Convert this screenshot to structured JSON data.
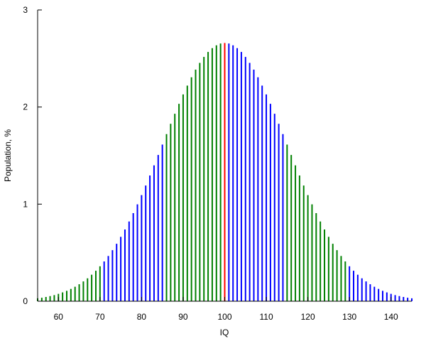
{
  "chart_data": {
    "type": "bar",
    "x_label": "IQ",
    "y_label": "Population, %",
    "xlim": [
      55,
      145
    ],
    "ylim": [
      0,
      3
    ],
    "xticks": [
      60,
      70,
      80,
      90,
      100,
      110,
      120,
      130,
      140
    ],
    "yticks": [
      0,
      1,
      2,
      3
    ],
    "series": [
      {
        "color": "#008000",
        "x": [
          55,
          56,
          57,
          58,
          59,
          60,
          61,
          62,
          63,
          64,
          65,
          66,
          67,
          68,
          69,
          70,
          86,
          87,
          88,
          89,
          90,
          91,
          92,
          93,
          94,
          95,
          96,
          97,
          98,
          99,
          115,
          116,
          117,
          118,
          119,
          120,
          121,
          122,
          123,
          124,
          125,
          126,
          127,
          128,
          129
        ],
        "values": [
          0.03,
          0.036,
          0.044,
          0.053,
          0.063,
          0.076,
          0.091,
          0.107,
          0.127,
          0.149,
          0.175,
          0.204,
          0.236,
          0.273,
          0.314,
          0.36,
          1.721,
          1.827,
          1.931,
          2.033,
          2.13,
          2.221,
          2.307,
          2.385,
          2.455,
          2.516,
          2.567,
          2.607,
          2.636,
          2.654,
          1.613,
          1.506,
          1.399,
          1.295,
          1.192,
          1.093,
          0.998,
          0.907,
          0.821,
          0.739,
          0.663,
          0.592,
          0.526,
          0.466,
          0.41
        ]
      },
      {
        "color": "#0000ff",
        "x": [
          71,
          72,
          73,
          74,
          75,
          76,
          77,
          78,
          79,
          80,
          81,
          82,
          83,
          84,
          85,
          101,
          102,
          103,
          104,
          105,
          106,
          107,
          108,
          109,
          110,
          111,
          112,
          113,
          114,
          130,
          131,
          132,
          133,
          134,
          135,
          136,
          137,
          138,
          139,
          140,
          141,
          142,
          143,
          144,
          145
        ],
        "values": [
          0.41,
          0.466,
          0.526,
          0.592,
          0.663,
          0.739,
          0.821,
          0.907,
          0.998,
          1.093,
          1.192,
          1.295,
          1.399,
          1.506,
          1.613,
          2.654,
          2.636,
          2.607,
          2.567,
          2.516,
          2.455,
          2.385,
          2.307,
          2.221,
          2.13,
          2.033,
          1.931,
          1.827,
          1.721,
          0.36,
          0.314,
          0.273,
          0.236,
          0.204,
          0.175,
          0.149,
          0.127,
          0.107,
          0.091,
          0.076,
          0.063,
          0.053,
          0.044,
          0.036,
          0.03
        ]
      },
      {
        "color": "#ff0000",
        "x": [
          100
        ],
        "values": [
          2.66
        ]
      }
    ]
  }
}
